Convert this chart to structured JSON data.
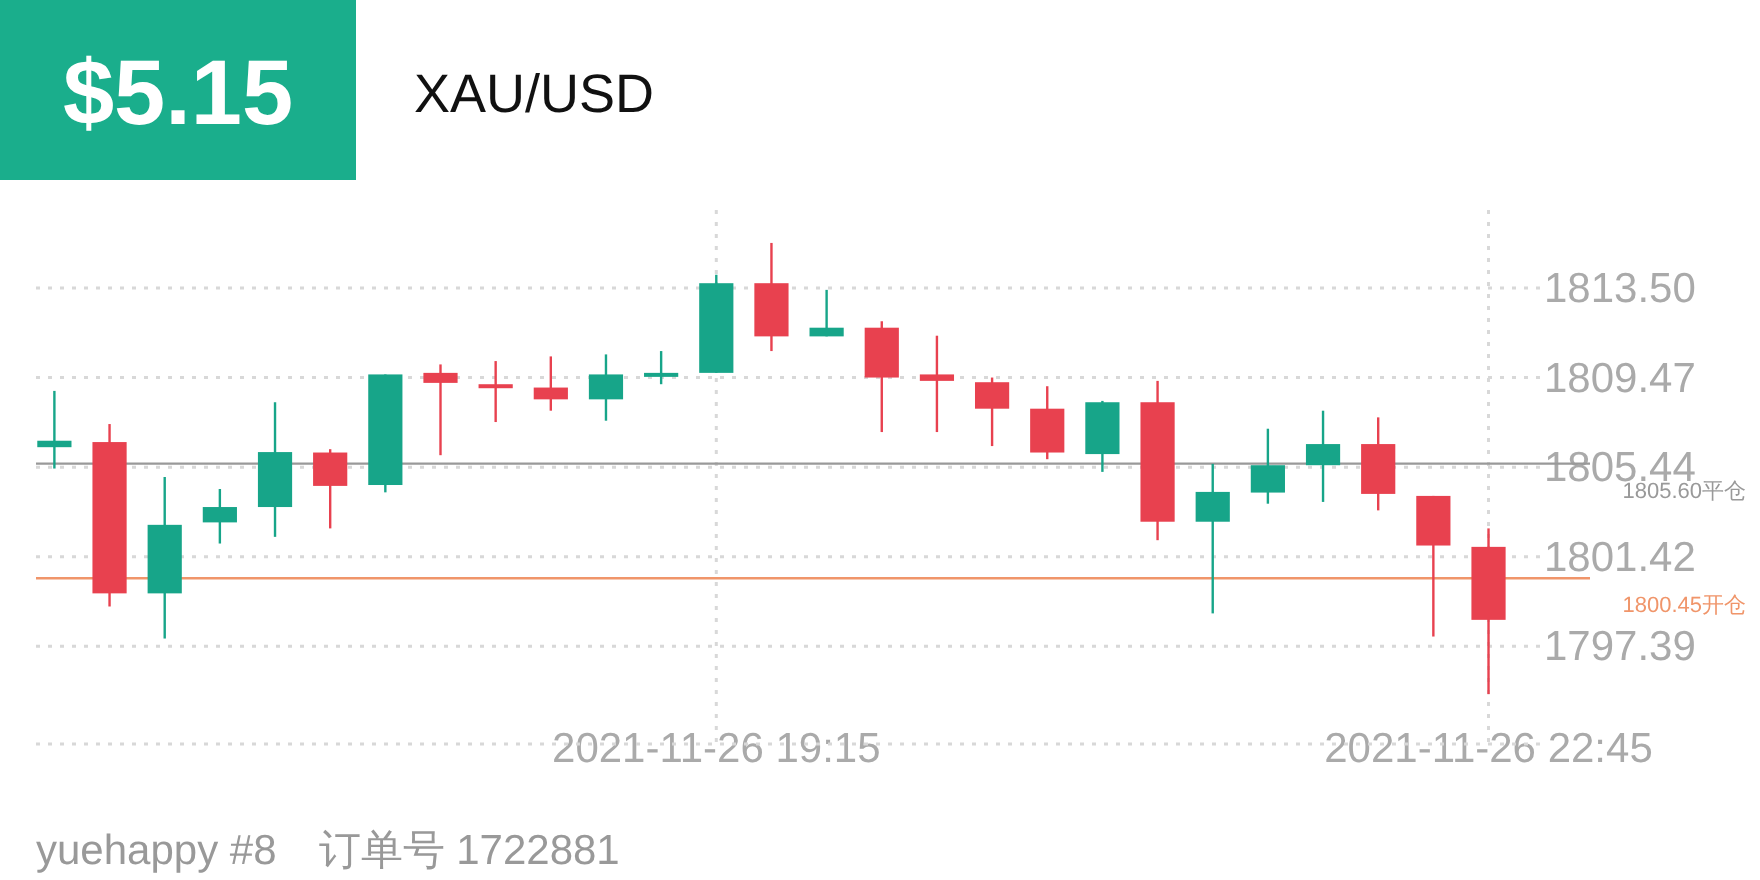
{
  "chart_data": {
    "type": "candlestick",
    "title": "XAU/USD",
    "subtitle": "$5.15",
    "annotations": [
      "yuehappy #8　订单号 1722881"
    ],
    "x": [
      "2021-11-26T16:15",
      "2021-11-26T16:30",
      "2021-11-26T16:45",
      "2021-11-26T17:00",
      "2021-11-26T17:15",
      "2021-11-26T17:30",
      "2021-11-26T17:45",
      "2021-11-26T18:00",
      "2021-11-26T18:15",
      "2021-11-26T18:30",
      "2021-11-26T18:45",
      "2021-11-26T19:00",
      "2021-11-26T19:15",
      "2021-11-26T19:30",
      "2021-11-26T19:45",
      "2021-11-26T20:00",
      "2021-11-26T20:15",
      "2021-11-26T20:30",
      "2021-11-26T20:45",
      "2021-11-26T21:00",
      "2021-11-26T21:15",
      "2021-11-26T21:30",
      "2021-11-26T21:45",
      "2021-11-26T22:00",
      "2021-11-26T22:15",
      "2021-11-26T22:30",
      "2021-11-26T22:45"
    ],
    "ohlc": [
      [
        1806.34,
        1808.87,
        1805.38,
        1806.63
      ],
      [
        1806.57,
        1807.38,
        1799.18,
        1799.77
      ],
      [
        1799.77,
        1805.0,
        1797.74,
        1802.85
      ],
      [
        1802.96,
        1804.46,
        1802.01,
        1803.65
      ],
      [
        1803.65,
        1808.36,
        1802.31,
        1806.12
      ],
      [
        1806.1,
        1806.25,
        1802.69,
        1804.6
      ],
      [
        1804.64,
        1809.61,
        1804.31,
        1809.61
      ],
      [
        1809.68,
        1810.06,
        1805.98,
        1809.23
      ],
      [
        1809.17,
        1810.21,
        1807.47,
        1808.99
      ],
      [
        1809.02,
        1810.42,
        1807.98,
        1808.49
      ],
      [
        1808.49,
        1810.51,
        1807.53,
        1809.61
      ],
      [
        1809.5,
        1810.66,
        1809.17,
        1809.68
      ],
      [
        1809.68,
        1814.09,
        1809.68,
        1813.71
      ],
      [
        1813.71,
        1815.52,
        1810.66,
        1811.32
      ],
      [
        1811.32,
        1813.41,
        1811.32,
        1811.71
      ],
      [
        1811.71,
        1812.0,
        1807.02,
        1809.47
      ],
      [
        1809.61,
        1811.35,
        1807.02,
        1809.32
      ],
      [
        1809.26,
        1809.47,
        1806.39,
        1808.07
      ],
      [
        1808.07,
        1809.08,
        1805.8,
        1806.1
      ],
      [
        1806.03,
        1808.42,
        1805.23,
        1808.36
      ],
      [
        1808.36,
        1809.32,
        1802.16,
        1802.99
      ],
      [
        1802.99,
        1805.59,
        1798.87,
        1804.33
      ],
      [
        1804.3,
        1807.17,
        1803.8,
        1805.53
      ],
      [
        1805.53,
        1807.98,
        1803.88,
        1806.48
      ],
      [
        1806.48,
        1807.68,
        1803.5,
        1804.24
      ],
      [
        1804.15,
        1804.15,
        1797.83,
        1801.92
      ],
      [
        1801.86,
        1802.69,
        1795.24,
        1798.58
      ]
    ],
    "colors": [
      "#17a589",
      "#e8414f",
      "#17a589",
      "#17a589",
      "#17a589",
      "#e8414f",
      "#17a589",
      "#e8414f",
      "#e8414f",
      "#e8414f",
      "#17a589",
      "#17a589",
      "#17a589",
      "#e8414f",
      "#17a589",
      "#e8414f",
      "#e8414f",
      "#e8414f",
      "#e8414f",
      "#17a589",
      "#e8414f",
      "#17a589",
      "#17a589",
      "#17a589",
      "#e8414f",
      "#e8414f",
      "#e8414f"
    ],
    "xlim": [
      "2021-11-26T16:10",
      "2021-11-26T22:59"
    ],
    "xticks": [
      {
        "value": "2021-11-26T19:15",
        "label": "2021-11-26 19:15"
      },
      {
        "value": "2021-11-26T22:45",
        "label": "2021-11-26 22:45"
      }
    ],
    "ylim": [
      1793.0,
      1817.0
    ],
    "yticks": [
      1797.39,
      1801.42,
      1805.44,
      1809.47,
      {
        "value": 1813.5,
        "label": "1813.50"
      }
    ],
    "ref_lines": [
      {
        "axis": "y",
        "value": 1805.6,
        "label": "1805.60平仓",
        "color": "#999999",
        "line_style": "solid"
      },
      {
        "axis": "y",
        "value": 1800.45,
        "label": "1800.45开仓",
        "color": "#f0956a",
        "line_style": "solid"
      }
    ],
    "grid": true
  }
}
